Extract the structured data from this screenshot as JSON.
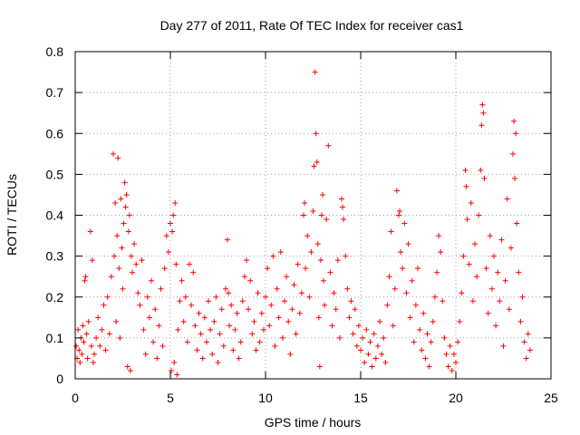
{
  "chart_data": {
    "type": "scatter",
    "title": "Day 277 of 2011, Rate Of TEC Index for receiver cas1",
    "xlabel": "GPS time / hours",
    "ylabel": "ROTI / TECUs",
    "xlim": [
      0,
      25
    ],
    "ylim": [
      0,
      0.8
    ],
    "x_ticks": [
      0,
      5,
      10,
      15,
      20,
      25
    ],
    "y_ticks": [
      0,
      0.1,
      0.2,
      0.3,
      0.4,
      0.5,
      0.6,
      0.7,
      0.8
    ],
    "x_tick_labels": [
      "0",
      "5",
      "10",
      "15",
      "20",
      "25"
    ],
    "y_tick_labels": [
      "0",
      "0.1",
      "0.2",
      "0.3",
      "0.4",
      "0.5",
      "0.6",
      "0.7",
      "0.8"
    ],
    "grid": true,
    "marker": "+",
    "marker_color": "#ff0000",
    "series": [
      {
        "name": "ROTI",
        "points": [
          [
            0.05,
            0.08
          ],
          [
            0.1,
            0.05
          ],
          [
            0.15,
            0.12
          ],
          [
            0.2,
            0.07
          ],
          [
            0.25,
            0.04
          ],
          [
            0.3,
            0.1
          ],
          [
            0.35,
            0.06
          ],
          [
            0.4,
            0.13
          ],
          [
            0.45,
            0.09
          ],
          [
            0.5,
            0.24
          ],
          [
            0.55,
            0.25
          ],
          [
            0.6,
            0.11
          ],
          [
            0.65,
            0.05
          ],
          [
            0.7,
            0.14
          ],
          [
            0.8,
            0.36
          ],
          [
            0.85,
            0.08
          ],
          [
            0.9,
            0.29
          ],
          [
            0.95,
            0.04
          ],
          [
            1.0,
            0.06
          ],
          [
            1.1,
            0.1
          ],
          [
            1.2,
            0.15
          ],
          [
            1.3,
            0.08
          ],
          [
            1.4,
            0.12
          ],
          [
            1.5,
            0.18
          ],
          [
            1.6,
            0.07
          ],
          [
            1.7,
            0.2
          ],
          [
            1.8,
            0.11
          ],
          [
            1.9,
            0.25
          ],
          [
            2.0,
            0.55
          ],
          [
            2.05,
            0.3
          ],
          [
            2.1,
            0.43
          ],
          [
            2.15,
            0.14
          ],
          [
            2.2,
            0.35
          ],
          [
            2.25,
            0.54
          ],
          [
            2.3,
            0.27
          ],
          [
            2.35,
            0.1
          ],
          [
            2.4,
            0.44
          ],
          [
            2.45,
            0.32
          ],
          [
            2.5,
            0.22
          ],
          [
            2.55,
            0.38
          ],
          [
            2.6,
            0.48
          ],
          [
            2.65,
            0.42
          ],
          [
            2.7,
            0.45
          ],
          [
            2.75,
            0.03
          ],
          [
            2.8,
            0.36
          ],
          [
            2.85,
            0.4
          ],
          [
            2.9,
            0.02
          ],
          [
            2.95,
            0.3
          ],
          [
            3.0,
            0.26
          ],
          [
            3.1,
            0.33
          ],
          [
            3.2,
            0.28
          ],
          [
            3.3,
            0.21
          ],
          [
            3.4,
            0.18
          ],
          [
            3.5,
            0.29
          ],
          [
            3.6,
            0.12
          ],
          [
            3.7,
            0.06
          ],
          [
            3.8,
            0.2
          ],
          [
            3.9,
            0.15
          ],
          [
            4.0,
            0.24
          ],
          [
            4.1,
            0.09
          ],
          [
            4.2,
            0.17
          ],
          [
            4.3,
            0.05
          ],
          [
            4.4,
            0.13
          ],
          [
            4.5,
            0.22
          ],
          [
            4.6,
            0.08
          ],
          [
            4.7,
            0.27
          ],
          [
            4.8,
            0.35
          ],
          [
            4.9,
            0.31
          ],
          [
            5.0,
            0.38
          ],
          [
            5.05,
            0.02
          ],
          [
            5.1,
            0.36
          ],
          [
            5.15,
            0.4
          ],
          [
            5.2,
            0.04
          ],
          [
            5.25,
            0.43
          ],
          [
            5.3,
            0.28
          ],
          [
            5.35,
            0.01
          ],
          [
            5.4,
            0.12
          ],
          [
            5.5,
            0.19
          ],
          [
            5.6,
            0.24
          ],
          [
            5.7,
            0.14
          ],
          [
            5.8,
            0.2
          ],
          [
            5.9,
            0.09
          ],
          [
            6.0,
            0.28
          ],
          [
            6.1,
            0.18
          ],
          [
            6.2,
            0.26
          ],
          [
            6.3,
            0.13
          ],
          [
            6.4,
            0.07
          ],
          [
            6.5,
            0.16
          ],
          [
            6.6,
            0.11
          ],
          [
            6.7,
            0.05
          ],
          [
            6.8,
            0.15
          ],
          [
            6.9,
            0.09
          ],
          [
            7.0,
            0.19
          ],
          [
            7.1,
            0.12
          ],
          [
            7.2,
            0.06
          ],
          [
            7.3,
            0.14
          ],
          [
            7.4,
            0.2
          ],
          [
            7.5,
            0.04
          ],
          [
            7.6,
            0.11
          ],
          [
            7.7,
            0.17
          ],
          [
            7.8,
            0.08
          ],
          [
            7.9,
            0.22
          ],
          [
            8.0,
            0.34
          ],
          [
            8.05,
            0.21
          ],
          [
            8.1,
            0.13
          ],
          [
            8.2,
            0.18
          ],
          [
            8.3,
            0.07
          ],
          [
            8.4,
            0.12
          ],
          [
            8.5,
            0.16
          ],
          [
            8.6,
            0.05
          ],
          [
            8.7,
            0.09
          ],
          [
            8.8,
            0.19
          ],
          [
            8.9,
            0.25
          ],
          [
            9.0,
            0.29
          ],
          [
            9.1,
            0.17
          ],
          [
            9.2,
            0.24
          ],
          [
            9.3,
            0.11
          ],
          [
            9.4,
            0.14
          ],
          [
            9.5,
            0.07
          ],
          [
            9.6,
            0.21
          ],
          [
            9.7,
            0.09
          ],
          [
            9.8,
            0.16
          ],
          [
            9.9,
            0.12
          ],
          [
            10.0,
            0.2
          ],
          [
            10.1,
            0.27
          ],
          [
            10.2,
            0.13
          ],
          [
            10.3,
            0.18
          ],
          [
            10.4,
            0.3
          ],
          [
            10.5,
            0.08
          ],
          [
            10.6,
            0.22
          ],
          [
            10.7,
            0.15
          ],
          [
            10.8,
            0.31
          ],
          [
            10.9,
            0.1
          ],
          [
            11.0,
            0.19
          ],
          [
            11.1,
            0.25
          ],
          [
            11.2,
            0.14
          ],
          [
            11.3,
            0.06
          ],
          [
            11.4,
            0.17
          ],
          [
            11.5,
            0.23
          ],
          [
            11.6,
            0.11
          ],
          [
            11.7,
            0.28
          ],
          [
            11.8,
            0.16
          ],
          [
            11.9,
            0.21
          ],
          [
            12.0,
            0.4
          ],
          [
            12.05,
            0.43
          ],
          [
            12.1,
            0.27
          ],
          [
            12.2,
            0.35
          ],
          [
            12.3,
            0.2
          ],
          [
            12.4,
            0.31
          ],
          [
            12.5,
            0.41
          ],
          [
            12.55,
            0.52
          ],
          [
            12.6,
            0.75
          ],
          [
            12.65,
            0.6
          ],
          [
            12.7,
            0.53
          ],
          [
            12.75,
            0.33
          ],
          [
            12.8,
            0.15
          ],
          [
            12.85,
            0.03
          ],
          [
            12.9,
            0.29
          ],
          [
            12.95,
            0.4
          ],
          [
            13.0,
            0.45
          ],
          [
            13.05,
            0.24
          ],
          [
            13.1,
            0.18
          ],
          [
            13.2,
            0.39
          ],
          [
            13.3,
            0.57
          ],
          [
            13.4,
            0.26
          ],
          [
            13.5,
            0.13
          ],
          [
            13.6,
            0.21
          ],
          [
            13.7,
            0.17
          ],
          [
            13.8,
            0.29
          ],
          [
            13.9,
            0.1
          ],
          [
            14.0,
            0.44
          ],
          [
            14.05,
            0.42
          ],
          [
            14.1,
            0.39
          ],
          [
            14.2,
            0.3
          ],
          [
            14.3,
            0.22
          ],
          [
            14.4,
            0.15
          ],
          [
            14.5,
            0.19
          ],
          [
            14.6,
            0.11
          ],
          [
            14.7,
            0.17
          ],
          [
            14.8,
            0.08
          ],
          [
            14.9,
            0.13
          ],
          [
            15.0,
            0.07
          ],
          [
            15.1,
            0.1
          ],
          [
            15.2,
            0.04
          ],
          [
            15.3,
            0.12
          ],
          [
            15.4,
            0.06
          ],
          [
            15.5,
            0.09
          ],
          [
            15.6,
            0.03
          ],
          [
            15.7,
            0.11
          ],
          [
            15.8,
            0.05
          ],
          [
            15.9,
            0.08
          ],
          [
            16.0,
            0.14
          ],
          [
            16.1,
            0.06
          ],
          [
            16.2,
            0.1
          ],
          [
            16.3,
            0.04
          ],
          [
            16.4,
            0.18
          ],
          [
            16.5,
            0.25
          ],
          [
            16.6,
            0.36
          ],
          [
            16.7,
            0.13
          ],
          [
            16.8,
            0.22
          ],
          [
            16.9,
            0.46
          ],
          [
            17.0,
            0.4
          ],
          [
            17.05,
            0.41
          ],
          [
            17.1,
            0.31
          ],
          [
            17.2,
            0.27
          ],
          [
            17.3,
            0.38
          ],
          [
            17.4,
            0.21
          ],
          [
            17.5,
            0.33
          ],
          [
            17.6,
            0.15
          ],
          [
            17.7,
            0.24
          ],
          [
            17.8,
            0.09
          ],
          [
            17.9,
            0.18
          ],
          [
            18.0,
            0.27
          ],
          [
            18.1,
            0.12
          ],
          [
            18.2,
            0.07
          ],
          [
            18.3,
            0.16
          ],
          [
            18.4,
            0.05
          ],
          [
            18.5,
            0.11
          ],
          [
            18.6,
            0.03
          ],
          [
            18.7,
            0.09
          ],
          [
            18.8,
            0.14
          ],
          [
            18.9,
            0.2
          ],
          [
            19.0,
            0.26
          ],
          [
            19.1,
            0.35
          ],
          [
            19.2,
            0.31
          ],
          [
            19.3,
            0.19
          ],
          [
            19.4,
            0.1
          ],
          [
            19.5,
            0.06
          ],
          [
            19.6,
            0.03
          ],
          [
            19.7,
            0.08
          ],
          [
            19.8,
            0.02
          ],
          [
            19.9,
            0.06
          ],
          [
            20.0,
            0.04
          ],
          [
            20.1,
            0.09
          ],
          [
            20.2,
            0.14
          ],
          [
            20.3,
            0.21
          ],
          [
            20.4,
            0.3
          ],
          [
            20.5,
            0.51
          ],
          [
            20.55,
            0.47
          ],
          [
            20.6,
            0.39
          ],
          [
            20.7,
            0.28
          ],
          [
            20.8,
            0.43
          ],
          [
            20.9,
            0.19
          ],
          [
            21.0,
            0.33
          ],
          [
            21.1,
            0.25
          ],
          [
            21.2,
            0.4
          ],
          [
            21.3,
            0.51
          ],
          [
            21.35,
            0.62
          ],
          [
            21.4,
            0.67
          ],
          [
            21.45,
            0.65
          ],
          [
            21.5,
            0.49
          ],
          [
            21.6,
            0.27
          ],
          [
            21.7,
            0.16
          ],
          [
            21.8,
            0.35
          ],
          [
            21.9,
            0.22
          ],
          [
            22.0,
            0.3
          ],
          [
            22.1,
            0.13
          ],
          [
            22.2,
            0.26
          ],
          [
            22.3,
            0.19
          ],
          [
            22.4,
            0.34
          ],
          [
            22.5,
            0.08
          ],
          [
            22.6,
            0.24
          ],
          [
            22.7,
            0.44
          ],
          [
            22.8,
            0.17
          ],
          [
            22.9,
            0.32
          ],
          [
            23.0,
            0.55
          ],
          [
            23.05,
            0.63
          ],
          [
            23.1,
            0.49
          ],
          [
            23.15,
            0.6
          ],
          [
            23.2,
            0.38
          ],
          [
            23.3,
            0.26
          ],
          [
            23.4,
            0.14
          ],
          [
            23.5,
            0.2
          ],
          [
            23.6,
            0.09
          ],
          [
            23.7,
            0.05
          ],
          [
            23.8,
            0.11
          ],
          [
            23.9,
            0.07
          ]
        ]
      }
    ]
  }
}
